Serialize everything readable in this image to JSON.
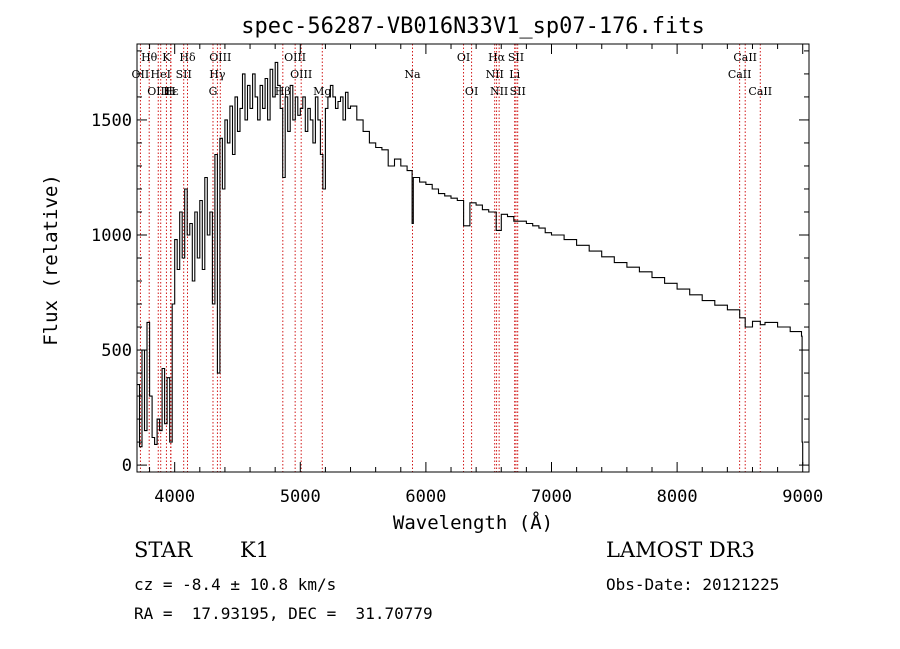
{
  "chart_data": {
    "type": "line",
    "title": "spec-56287-VB016N33V1_sp07-176.fits",
    "xlabel": "Wavelength (Å)",
    "ylabel": "Flux (relative)",
    "xlim": [
      3700,
      9050
    ],
    "ylim": [
      -30,
      1830
    ],
    "xticks": [
      4000,
      5000,
      6000,
      7000,
      8000,
      9000
    ],
    "yticks": [
      0,
      500,
      1000,
      1500
    ],
    "series": [
      {
        "name": "flux",
        "x": [
          3700,
          3720,
          3740,
          3760,
          3780,
          3800,
          3820,
          3840,
          3860,
          3880,
          3900,
          3920,
          3940,
          3960,
          3980,
          4000,
          4020,
          4040,
          4060,
          4080,
          4100,
          4120,
          4140,
          4160,
          4180,
          4200,
          4220,
          4240,
          4260,
          4280,
          4300,
          4320,
          4340,
          4360,
          4380,
          4400,
          4420,
          4440,
          4460,
          4480,
          4500,
          4520,
          4540,
          4560,
          4580,
          4600,
          4620,
          4640,
          4660,
          4680,
          4700,
          4720,
          4740,
          4760,
          4780,
          4800,
          4820,
          4840,
          4860,
          4880,
          4900,
          4920,
          4940,
          4960,
          4980,
          5000,
          5020,
          5040,
          5060,
          5080,
          5100,
          5120,
          5140,
          5160,
          5180,
          5200,
          5220,
          5240,
          5260,
          5280,
          5300,
          5320,
          5340,
          5360,
          5380,
          5400,
          5450,
          5500,
          5550,
          5600,
          5650,
          5700,
          5750,
          5800,
          5850,
          5890,
          5900,
          5950,
          6000,
          6050,
          6100,
          6150,
          6200,
          6250,
          6300,
          6350,
          6400,
          6450,
          6500,
          6560,
          6600,
          6650,
          6700,
          6750,
          6800,
          6850,
          6900,
          6950,
          7000,
          7100,
          7200,
          7300,
          7400,
          7500,
          7600,
          7700,
          7800,
          7900,
          8000,
          8100,
          8200,
          8300,
          8400,
          8498,
          8542,
          8600,
          8662,
          8700,
          8800,
          8900,
          8990,
          8995,
          9000
        ],
        "y": [
          350,
          80,
          500,
          150,
          620,
          300,
          120,
          90,
          200,
          150,
          420,
          180,
          380,
          100,
          700,
          980,
          850,
          1100,
          900,
          1200,
          1000,
          1050,
          800,
          1100,
          900,
          1150,
          850,
          1250,
          1000,
          1100,
          700,
          1350,
          400,
          1420,
          1200,
          1500,
          1400,
          1560,
          1350,
          1600,
          1450,
          1550,
          1700,
          1500,
          1650,
          1550,
          1700,
          1600,
          1500,
          1650,
          1550,
          1680,
          1500,
          1720,
          1600,
          1750,
          1650,
          1550,
          1250,
          1600,
          1450,
          1650,
          1500,
          1600,
          1520,
          1550,
          1600,
          1450,
          1550,
          1500,
          1400,
          1600,
          1500,
          1350,
          1200,
          1550,
          1600,
          1650,
          1600,
          1550,
          1580,
          1600,
          1500,
          1620,
          1550,
          1560,
          1500,
          1450,
          1400,
          1380,
          1370,
          1300,
          1330,
          1300,
          1280,
          1050,
          1250,
          1230,
          1220,
          1200,
          1180,
          1170,
          1160,
          1150,
          1040,
          1140,
          1130,
          1110,
          1100,
          1020,
          1090,
          1080,
          1060,
          1060,
          1050,
          1040,
          1030,
          1010,
          1000,
          980,
          955,
          930,
          905,
          880,
          860,
          840,
          815,
          790,
          765,
          740,
          715,
          695,
          675,
          640,
          600,
          625,
          610,
          620,
          600,
          580,
          560,
          100,
          0
        ]
      }
    ],
    "spectral_lines": [
      {
        "name": "Hθ",
        "wavelength": 3797,
        "row": 1
      },
      {
        "name": "OII",
        "wavelength": 3727,
        "row": 2
      },
      {
        "name": "OIII",
        "wavelength": 3869,
        "row": 3
      },
      {
        "name": "K",
        "wavelength": 3934,
        "row": 1
      },
      {
        "name": "HeI",
        "wavelength": 3889,
        "row": 2
      },
      {
        "name": "Hε",
        "wavelength": 3970,
        "row": 3
      },
      {
        "name": "H",
        "wavelength": 3968,
        "row": 3
      },
      {
        "name": "SII",
        "wavelength": 4072,
        "row": 2
      },
      {
        "name": "Hδ",
        "wavelength": 4102,
        "row": 1
      },
      {
        "name": "OIII",
        "wavelength": 4363,
        "row": 1
      },
      {
        "name": "Hγ",
        "wavelength": 4340,
        "row": 2
      },
      {
        "name": "G",
        "wavelength": 4305,
        "row": 3
      },
      {
        "name": "OIII",
        "wavelength": 4959,
        "row": 1
      },
      {
        "name": "OIII",
        "wavelength": 5007,
        "row": 2
      },
      {
        "name": "Hβ",
        "wavelength": 4861,
        "row": 3
      },
      {
        "name": "Mg",
        "wavelength": 5175,
        "row": 3
      },
      {
        "name": "Na",
        "wavelength": 5893,
        "row": 2
      },
      {
        "name": "OI",
        "wavelength": 6300,
        "row": 1
      },
      {
        "name": "OI",
        "wavelength": 6364,
        "row": 3
      },
      {
        "name": "Hα",
        "wavelength": 6563,
        "row": 1
      },
      {
        "name": "NII",
        "wavelength": 6548,
        "row": 2
      },
      {
        "name": "NII",
        "wavelength": 6583,
        "row": 3
      },
      {
        "name": "SII",
        "wavelength": 6717,
        "row": 1
      },
      {
        "name": "Li",
        "wavelength": 6707,
        "row": 2
      },
      {
        "name": "SII",
        "wavelength": 6731,
        "row": 3
      },
      {
        "name": "CaII",
        "wavelength": 8542,
        "row": 1
      },
      {
        "name": "CaII",
        "wavelength": 8498,
        "row": 2
      },
      {
        "name": "CaII",
        "wavelength": 8662,
        "row": 3
      }
    ]
  },
  "info": {
    "object_class": "STAR",
    "subclass": "K1",
    "survey": "LAMOST DR3",
    "cz": "cz = -8.4 ± 10.8 km/s",
    "obs_date": "Obs-Date: 20121225",
    "coords": "RA =  17.93195, DEC =  31.70779"
  },
  "colors": {
    "axis": "#000000",
    "spectrum": "#000000",
    "line_marker": "#cc0000"
  }
}
